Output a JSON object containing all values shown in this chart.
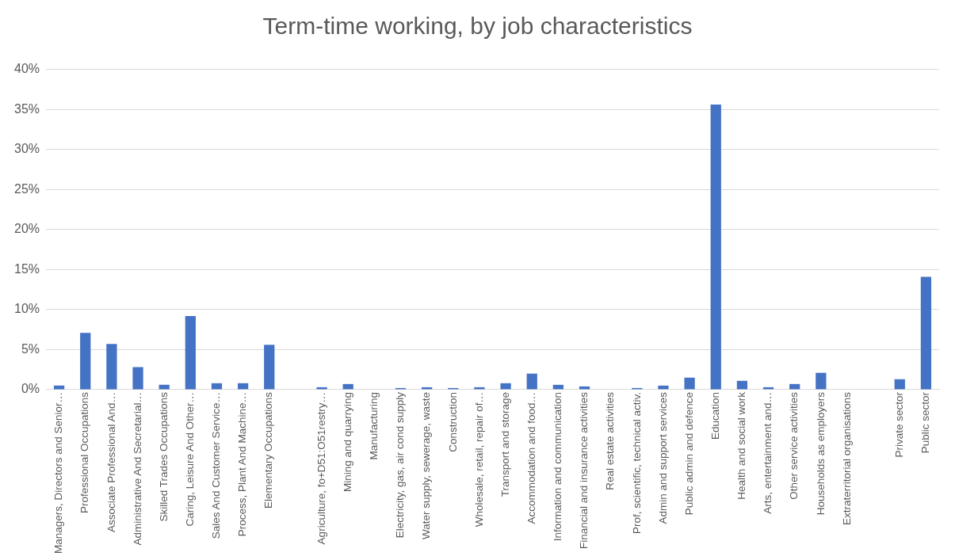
{
  "chart_data": {
    "type": "bar",
    "title": "Term-time working, by job characteristics",
    "categories": [
      "Managers, Directors and Senior…",
      "Professional Occupations",
      "Associate Professional And…",
      "Administrative And Secretarial…",
      "Skilled Trades Occupations",
      "Caring, Leisure And Other…",
      "Sales And Customer Service…",
      "Process, Plant And Machine…",
      "Elementary Occupations",
      null,
      "Agriculture, fo+D51:O51restry…",
      "Mining and quarrying",
      "Manufacturing",
      "Electricity, gas, air cond supply",
      "Water supply, sewerage, waste",
      "Construction",
      "Wholesale, retail, repair of…",
      "Transport and storage",
      "Accommodation and food…",
      "Information and communication",
      "Financial and insurance activities",
      "Real estate activities",
      "Prof, scientific, technical activ.",
      "Admin and support services",
      "Public admin and defence",
      "Education",
      "Health and social work",
      "Arts, entertainment and…",
      "Other service activities",
      "Households as employers",
      "Extraterritorial organisations",
      null,
      "Private sector",
      "Public sector"
    ],
    "values": [
      0.5,
      7.1,
      5.7,
      2.8,
      0.6,
      9.2,
      0.8,
      0.8,
      5.6,
      null,
      0.3,
      0.7,
      0,
      0.2,
      0.3,
      0.2,
      0.3,
      0.8,
      2.0,
      0.6,
      0.4,
      0,
      0.2,
      0.5,
      1.5,
      35.6,
      1.1,
      0.3,
      0.7,
      2.1,
      0,
      null,
      1.3,
      14.1
    ],
    "color": "#4472c4",
    "ylim": [
      0,
      40
    ],
    "yticks": [
      {
        "value": 0,
        "label": "0%"
      },
      {
        "value": 5,
        "label": "5%"
      },
      {
        "value": 10,
        "label": "10%"
      },
      {
        "value": 15,
        "label": "15%"
      },
      {
        "value": 20,
        "label": "20%"
      },
      {
        "value": 25,
        "label": "25%"
      },
      {
        "value": 30,
        "label": "30%"
      },
      {
        "value": 35,
        "label": "35%"
      },
      {
        "value": 40,
        "label": "40%"
      }
    ],
    "grid": "y"
  }
}
